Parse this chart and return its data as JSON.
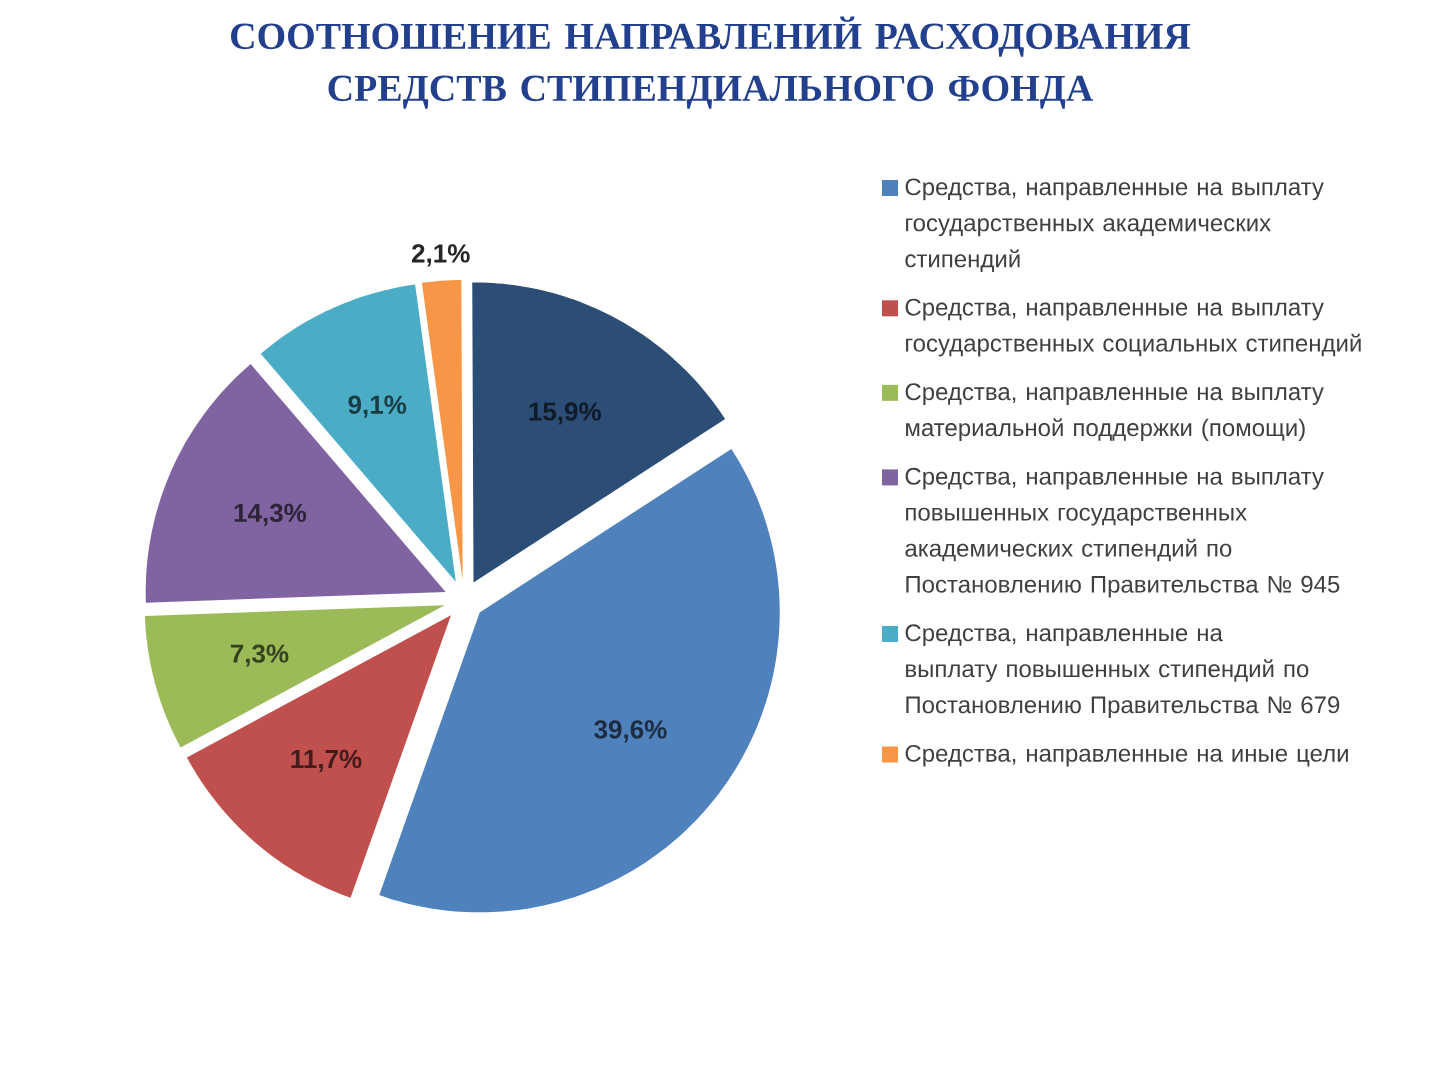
{
  "chart_data": {
    "type": "pie",
    "title": "СООТНОШЕНИЕ НАПРАВЛЕНИЙ РАСХОДОВАНИЯ СРЕДСТВ СТИПЕНДИАЛЬНОГО ФОНДА",
    "categories": [
      "Средства, направленные на выплату государственных академических стипендий",
      "Средства, направленные на выплату государственных социальных стипендий",
      "Средства, направленные на выплату материальной поддержки (помощи)",
      "Средства, направленные на выплату повышенных государственных академических стипендий по Постановлению Правительства № 945",
      "Средства, направленные на выплату повышенных стипендий по Постановлению Правительства № 679",
      "Средства, направленные на иные цели",
      null
    ],
    "values": [
      39.6,
      11.7,
      7.3,
      14.3,
      9.1,
      2.1,
      15.9
    ],
    "value_labels": [
      "39,6%",
      "11,7%",
      "7,3%",
      "14,3%",
      "9,1%",
      "2,1%",
      "15,9%"
    ],
    "colors": [
      "#4f81bd",
      "#c0504d",
      "#9bbb59",
      "#8064a2",
      "#4bacc6",
      "#f79646",
      "#2c4d75"
    ],
    "legend": "right"
  }
}
